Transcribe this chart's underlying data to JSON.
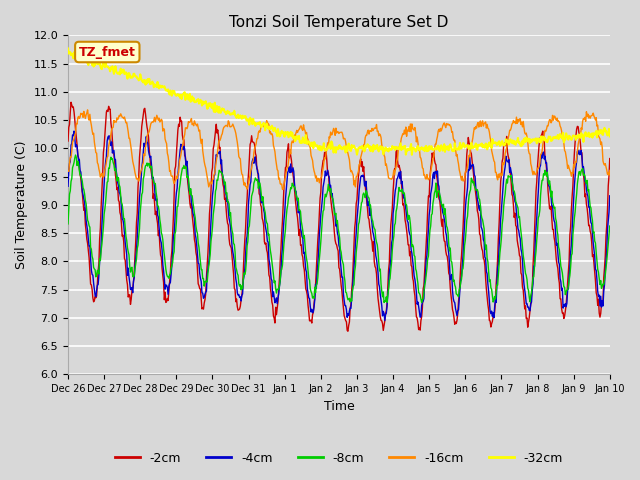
{
  "title": "Tonzi Soil Temperature Set D",
  "xlabel": "Time",
  "ylabel": "Soil Temperature (C)",
  "ylim": [
    6.0,
    12.0
  ],
  "yticks": [
    6.0,
    6.5,
    7.0,
    7.5,
    8.0,
    8.5,
    9.0,
    9.5,
    10.0,
    10.5,
    11.0,
    11.5,
    12.0
  ],
  "xtick_labels": [
    "Dec 26",
    "Dec 27",
    "Dec 28",
    "Dec 29",
    "Dec 30",
    "Dec 31",
    "Jan 1",
    "Jan 2",
    "Jan 3",
    "Jan 4",
    "Jan 5",
    "Jan 6",
    "Jan 7",
    "Jan 8",
    "Jan 9",
    "Jan 10"
  ],
  "line_colors": {
    "-2cm": "#cc0000",
    "-4cm": "#0000cc",
    "-8cm": "#00cc00",
    "-16cm": "#ff8800",
    "-32cm": "#ffff00"
  },
  "legend_label_box_color": "#ffffcc",
  "legend_label_box_border": "#cc8800",
  "legend_label_text": "TZ_fmet",
  "legend_label_text_color": "#cc0000",
  "background_color": "#d8d8d8",
  "plot_bg_color": "#d8d8d8",
  "grid_color": "#ffffff",
  "figsize": [
    6.4,
    4.8
  ],
  "dpi": 100
}
